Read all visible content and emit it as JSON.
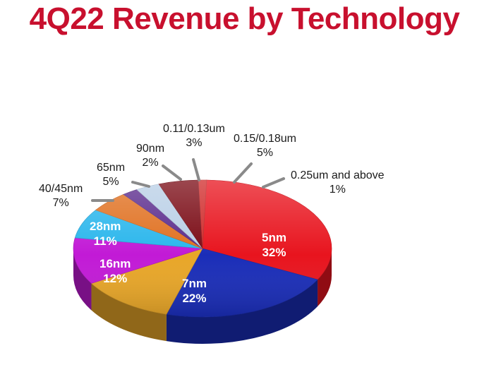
{
  "chart_data": {
    "type": "pie",
    "title": "4Q22 Revenue by Technology",
    "slices": [
      {
        "name": "5nm",
        "value": 32,
        "label": "32%",
        "color": "#e8141e"
      },
      {
        "name": "7nm",
        "value": 22,
        "label": "22%",
        "color": "#1a2db8"
      },
      {
        "name": "16nm",
        "value": 12,
        "label": "12%",
        "color": "#e8a628"
      },
      {
        "name": "28nm",
        "value": 11,
        "label": "11%",
        "color": "#c21ad6"
      },
      {
        "name": "40/45nm",
        "value": 7,
        "label": "7%",
        "color": "#2ab6ec"
      },
      {
        "name": "65nm",
        "value": 5,
        "label": "5%",
        "color": "#e07020"
      },
      {
        "name": "90nm",
        "value": 2,
        "label": "2%",
        "color": "#5a2a8c"
      },
      {
        "name": "0.11/0.13um",
        "value": 3,
        "label": "3%",
        "color": "#b9cfe6"
      },
      {
        "name": "0.15/0.18um",
        "value": 5,
        "label": "5%",
        "color": "#7a0a14"
      },
      {
        "name": "0.25um and above",
        "value": 1,
        "label": "1%",
        "color": "#d02a2a"
      }
    ]
  }
}
